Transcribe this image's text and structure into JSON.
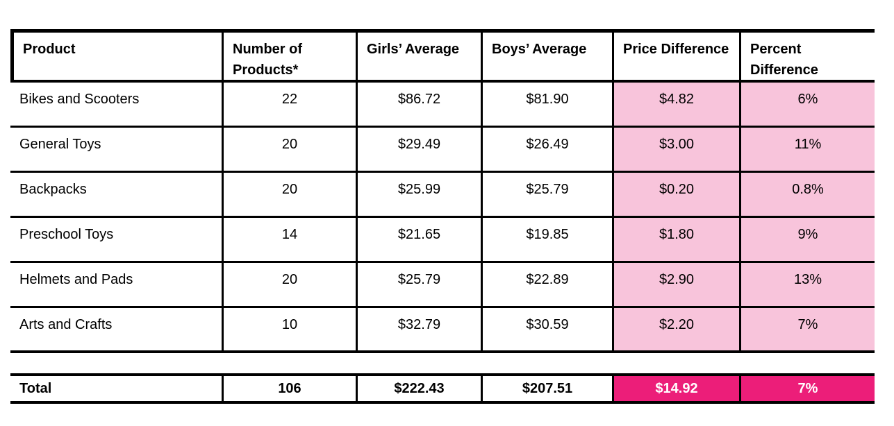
{
  "table": {
    "columns": [
      {
        "label": "Product"
      },
      {
        "label": "Number of Products*"
      },
      {
        "label": "Girls’ Average"
      },
      {
        "label": "Boys’ Average"
      },
      {
        "label": "Price Difference"
      },
      {
        "label": "Percent Difference"
      }
    ],
    "rows": [
      {
        "product": "Bikes and Scooters",
        "count": "22",
        "girls": "$86.72",
        "boys": "$81.90",
        "price_diff": "$4.82",
        "pct_diff": "6%"
      },
      {
        "product": "General Toys",
        "count": "20",
        "girls": "$29.49",
        "boys": "$26.49",
        "price_diff": "$3.00",
        "pct_diff": "11%"
      },
      {
        "product": "Backpacks",
        "count": "20",
        "girls": "$25.99",
        "boys": "$25.79",
        "price_diff": "$0.20",
        "pct_diff": "0.8%"
      },
      {
        "product": "Preschool Toys",
        "count": "14",
        "girls": "$21.65",
        "boys": "$19.85",
        "price_diff": "$1.80",
        "pct_diff": "9%"
      },
      {
        "product": "Helmets and Pads",
        "count": "20",
        "girls": "$25.79",
        "boys": "$22.89",
        "price_diff": "$2.90",
        "pct_diff": "13%"
      },
      {
        "product": "Arts and Crafts",
        "count": "10",
        "girls": "$32.79",
        "boys": "$30.59",
        "price_diff": "$2.20",
        "pct_diff": "7%"
      }
    ],
    "total": {
      "label": "Total",
      "count": "106",
      "girls": "$222.43",
      "boys": "$207.51",
      "price_diff": "$14.92",
      "pct_diff": "7%"
    }
  },
  "colors": {
    "highlight_light": "#F8C4DB",
    "highlight_strong": "#EC1E79",
    "border": "#000000",
    "total_text": "#FFFFFF"
  },
  "chart_data": {
    "type": "table",
    "columns": [
      "Product",
      "Number of Products*",
      "Girls’ Average",
      "Boys’ Average",
      "Price Difference",
      "Percent Difference"
    ],
    "rows": [
      [
        "Bikes and Scooters",
        22,
        86.72,
        81.9,
        4.82,
        "6%"
      ],
      [
        "General Toys",
        20,
        29.49,
        26.49,
        3.0,
        "11%"
      ],
      [
        "Backpacks",
        20,
        25.99,
        25.79,
        0.2,
        "0.8%"
      ],
      [
        "Preschool Toys",
        14,
        21.65,
        19.85,
        1.8,
        "9%"
      ],
      [
        "Helmets and Pads",
        20,
        25.79,
        22.89,
        2.9,
        "13%"
      ],
      [
        "Arts and Crafts",
        10,
        32.79,
        30.59,
        2.2,
        "7%"
      ]
    ],
    "total_row": [
      "Total",
      106,
      222.43,
      207.51,
      14.92,
      "7%"
    ],
    "highlighted_columns": [
      "Price Difference",
      "Percent Difference"
    ],
    "legend_position": "none",
    "grid": true
  }
}
